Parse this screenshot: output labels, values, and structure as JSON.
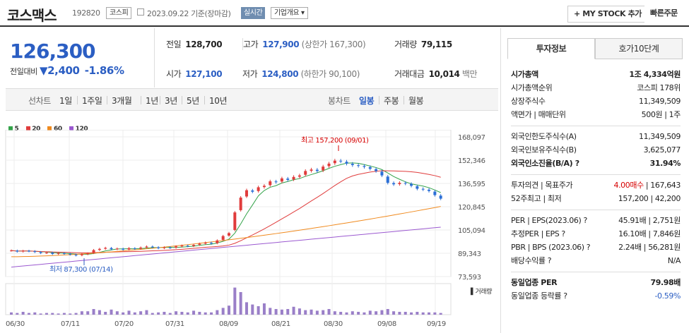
{
  "header": {
    "name": "코스맥스",
    "code": "192820",
    "market": "코스피",
    "date": "2023.09.22 기준(장마감)",
    "realtime": "실시간",
    "company_info": "기업개요 ▾",
    "my_stock": "+ MY STOCK 추가",
    "quick_order": "빠른주문"
  },
  "price": {
    "current": "126,300",
    "change_label": "전일대비",
    "change": "▼2,400",
    "change_pct": "-1.86%"
  },
  "summary": {
    "prev_label": "전일",
    "prev": "128,700",
    "high_label": "고가",
    "high": "127,900",
    "upper_limit": "(상한가 167,300)",
    "volume_label": "거래량",
    "volume": "79,115",
    "open_label": "시가",
    "open": "127,100",
    "low_label": "저가",
    "low": "124,800",
    "lower_limit": "(하한가 90,100)",
    "amount_label": "거래대금",
    "amount": "10,014",
    "amount_unit": "백만"
  },
  "toolbar": {
    "line_label": "선차트",
    "periods": [
      "1일",
      "1주일",
      "3개월",
      "1년",
      "3년",
      "5년",
      "10년"
    ],
    "candle_label": "봉차트",
    "candle_periods": [
      "일봉",
      "주봉",
      "월봉"
    ],
    "selected_candle": "일봉"
  },
  "chart_data": {
    "type": "candlestick",
    "ma_legend": [
      "5",
      "20",
      "60",
      "120"
    ],
    "ma_colors": [
      "#34a34a",
      "#e03c3c",
      "#f08a1e",
      "#9b59d0"
    ],
    "y_ticks": [
      "168,097",
      "152,346",
      "136,595",
      "120,845",
      "105,094",
      "89,343",
      "73,593"
    ],
    "x_ticks": [
      "06/30",
      "07/11",
      "07/20",
      "07/31",
      "08/09",
      "08/21",
      "08/30",
      "09/08",
      "09/19"
    ],
    "high_annotation": "최고 157,200 (09/01)",
    "low_annotation": "최저 87,300 (07/14)",
    "volume_label": "거래량",
    "closes": [
      91200,
      90500,
      91000,
      90800,
      90200,
      89500,
      89800,
      88900,
      89400,
      89000,
      88500,
      87900,
      88700,
      89200,
      91500,
      92300,
      93000,
      92100,
      92500,
      91800,
      92800,
      92400,
      93200,
      93900,
      93500,
      92800,
      93300,
      93100,
      94000,
      94500,
      94200,
      95000,
      95800,
      96500,
      95900,
      98000,
      101000,
      103000,
      117000,
      127000,
      132000,
      131000,
      134000,
      135000,
      138000,
      137500,
      140000,
      139000,
      141000,
      142000,
      145000,
      146000,
      145000,
      148000,
      150000,
      152000,
      151500,
      150000,
      149000,
      148500,
      147800,
      146500,
      145000,
      142000,
      137000,
      136000,
      137000,
      136500,
      135000,
      133000,
      132500,
      131500,
      128700,
      126300
    ],
    "volumes": [
      4,
      3,
      5,
      3,
      4,
      2,
      3,
      3,
      2,
      3,
      2,
      3,
      6,
      6,
      10,
      8,
      5,
      9,
      6,
      4,
      7,
      4,
      6,
      8,
      3,
      4,
      5,
      3,
      6,
      5,
      4,
      7,
      5,
      4,
      4,
      8,
      12,
      16,
      48,
      40,
      22,
      18,
      15,
      20,
      12,
      10,
      9,
      10,
      14,
      11,
      8,
      9,
      7,
      8,
      10,
      6,
      5,
      4,
      6,
      5,
      4,
      7,
      6,
      8,
      10,
      6,
      5,
      5,
      4,
      5,
      4,
      4,
      4,
      3
    ]
  },
  "investment": {
    "tabs": [
      "투자정보",
      "호가10단계"
    ],
    "rows": [
      {
        "k": "시가총액",
        "v": "1조 4,334억원",
        "bold": true
      },
      {
        "k": "시가총액순위",
        "v": "코스피 178위"
      },
      {
        "k": "상장주식수",
        "v": "11,349,509"
      },
      {
        "k": "액면가 | 매매단위",
        "v": "500원 | 1주"
      },
      {
        "k": "외국인한도주식수(A)",
        "v": "11,349,509"
      },
      {
        "k": "외국인보유주식수(B)",
        "v": "3,625,077"
      },
      {
        "k": "외국인소진율(B/A) ?",
        "v": "31.94%",
        "bold": true
      },
      {
        "k": "투자의견 | 목표주가",
        "v": "4.00매수 | 167,643"
      },
      {
        "k": "52주최고 | 최저",
        "v": "157,200 | 42,200"
      },
      {
        "k": "PER | EPS(2023.06) ?",
        "v": "45.91배 | 2,751원"
      },
      {
        "k": "추정PER | EPS ?",
        "v": "16.10배 | 7,846원"
      },
      {
        "k": "PBR | BPS (2023.06) ?",
        "v": "2.24배 | 56,281원"
      },
      {
        "k": "배당수익률 ?",
        "v": "N/A"
      },
      {
        "k": "동일업종 PER",
        "v": "79.98배",
        "bold": true
      },
      {
        "k": "동일업종 등락률 ?",
        "v": "-0.59%",
        "blue": true
      }
    ]
  }
}
